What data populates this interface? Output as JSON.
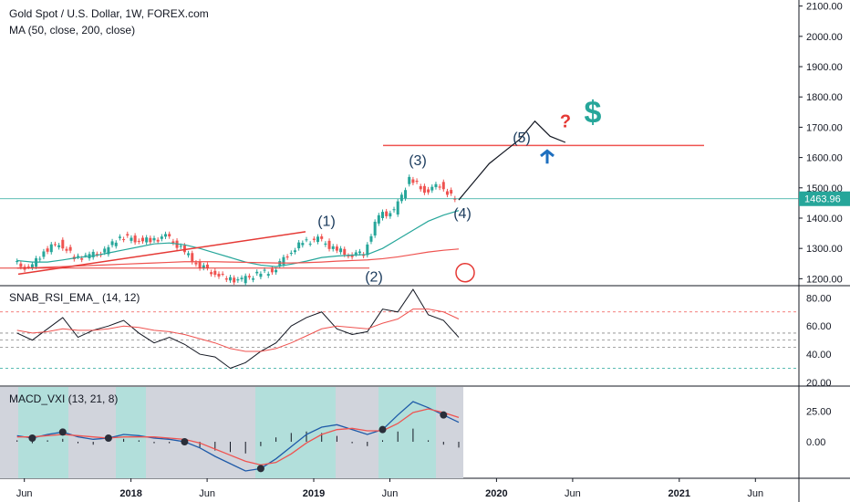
{
  "header": {
    "symbol_line": "Gold Spot / U.S. Dollar, 1W, FOREX.com",
    "ma_line": "MA (50, close, 200, close)"
  },
  "rsi_pane": {
    "title": "SNAB_RSI_EMA_ (14, 12)"
  },
  "macd_pane": {
    "title": "MACD_VXI (13, 21, 8)"
  },
  "colors": {
    "up": "#26a69a",
    "down": "#ef5350",
    "ma50": "#26a69a",
    "ma200": "#ef5350",
    "annotation_line": "#e53935",
    "hline": "#ef5350",
    "current_price_tag": "#26a69a",
    "dollar": "#26a69a",
    "question": "#e53935",
    "arrow": "#1e6fbf",
    "macd_band_gray": "#d1d4dc",
    "macd_band_teal": "#b2dfdb",
    "rsi_line": "#131722",
    "rsi_ema": "#ef5350",
    "macd_line": "#1e5aa8",
    "signal_line": "#ef5350"
  },
  "chart_data": [
    {
      "type": "candlestick",
      "title": "Gold Spot / U.S. Dollar, 1W, FOREX.com",
      "x": [
        "2017-06",
        "2017-07",
        "2017-08",
        "2017-09",
        "2017-10",
        "2017-11",
        "2017-12",
        "2018-01",
        "2018-02",
        "2018-03",
        "2018-04",
        "2018-05",
        "2018-06",
        "2018-07",
        "2018-08",
        "2018-09",
        "2018-10",
        "2018-11",
        "2018-12",
        "2019-01",
        "2019-02",
        "2019-03",
        "2019-04",
        "2019-05",
        "2019-06",
        "2019-07",
        "2019-08",
        "2019-09",
        "2019-10",
        "2019-11"
      ],
      "close": [
        1255,
        1230,
        1290,
        1320,
        1270,
        1275,
        1290,
        1340,
        1330,
        1325,
        1340,
        1300,
        1250,
        1225,
        1200,
        1195,
        1215,
        1225,
        1280,
        1320,
        1330,
        1300,
        1280,
        1285,
        1410,
        1420,
        1530,
        1490,
        1510,
        1460
      ],
      "y_axis_ticks": [
        "2100.00",
        "2000.00",
        "1900.00",
        "1800.00",
        "1700.00",
        "1600.00",
        "1500.00",
        "1400.00",
        "1300.00",
        "1200.00"
      ],
      "ylim": [
        1180,
        2120
      ],
      "current_price": "1463.96",
      "series": [
        {
          "name": "MA 50",
          "values": [
            1260,
            1255,
            1255,
            1262,
            1270,
            1275,
            1285,
            1295,
            1305,
            1315,
            1318,
            1312,
            1300,
            1285,
            1270,
            1255,
            1245,
            1240,
            1248,
            1258,
            1270,
            1275,
            1278,
            1280,
            1300,
            1330,
            1360,
            1390,
            1410,
            1425
          ]
        },
        {
          "name": "MA 200",
          "values": [
            1235,
            1236,
            1238,
            1240,
            1242,
            1244,
            1246,
            1248,
            1250,
            1252,
            1254,
            1256,
            1256,
            1256,
            1255,
            1254,
            1253,
            1252,
            1252,
            1253,
            1255,
            1258,
            1260,
            1262,
            1266,
            1272,
            1280,
            1288,
            1294,
            1298
          ]
        }
      ],
      "horizontal_line": 1640,
      "projection": [
        [
          "2019-11",
          1460
        ],
        [
          "2019-12",
          1520
        ],
        [
          "2020-01",
          1580
        ],
        [
          "2020-02",
          1620
        ],
        [
          "2020-03",
          1660
        ],
        [
          "2020-04",
          1720
        ],
        [
          "2020-05",
          1670
        ],
        [
          "2020-06",
          1650
        ]
      ],
      "annotations": [
        "(1)",
        "(2)",
        "(3)",
        "(4)",
        "(5)",
        "?",
        "$"
      ],
      "x_ticks": [
        "Jun",
        "2018",
        "Jun",
        "2019",
        "Jun",
        "2020",
        "Jun",
        "2021",
        "Jun"
      ]
    },
    {
      "type": "line",
      "title": "SNAB_RSI_EMA_ (14, 12)",
      "y_axis_ticks": [
        "80.00",
        "60.00",
        "40.00",
        "20.00"
      ],
      "ylim": [
        18,
        88
      ],
      "levels": [
        70,
        55,
        50,
        45,
        30
      ],
      "series": [
        {
          "name": "RSI",
          "values": [
            55,
            50,
            58,
            66,
            52,
            57,
            60,
            64,
            55,
            48,
            52,
            47,
            40,
            38,
            30,
            34,
            42,
            48,
            60,
            66,
            70,
            58,
            54,
            56,
            72,
            70,
            86,
            68,
            64,
            52
          ]
        },
        {
          "name": "EMA",
          "values": [
            57,
            55,
            56,
            58,
            57,
            57,
            58,
            60,
            59,
            57,
            56,
            54,
            51,
            48,
            44,
            42,
            42,
            44,
            48,
            53,
            58,
            60,
            59,
            58,
            62,
            65,
            72,
            72,
            70,
            65
          ]
        }
      ]
    },
    {
      "type": "line",
      "title": "MACD_VXI (13, 21, 8)",
      "y_axis_ticks": [
        "25.00",
        "0.00"
      ],
      "ylim": [
        -30,
        45
      ],
      "series": [
        {
          "name": "MACD",
          "values": [
            5,
            3,
            6,
            8,
            4,
            2,
            3,
            6,
            5,
            3,
            2,
            0,
            -5,
            -12,
            -18,
            -24,
            -22,
            -14,
            -4,
            6,
            12,
            14,
            10,
            6,
            10,
            22,
            33,
            28,
            22,
            16
          ]
        },
        {
          "name": "Signal",
          "values": [
            4,
            4,
            5,
            6,
            5,
            4,
            3,
            4,
            4,
            4,
            3,
            2,
            -1,
            -6,
            -11,
            -16,
            -19,
            -17,
            -10,
            -1,
            6,
            10,
            11,
            9,
            9,
            15,
            24,
            27,
            24,
            20
          ]
        }
      ]
    }
  ]
}
